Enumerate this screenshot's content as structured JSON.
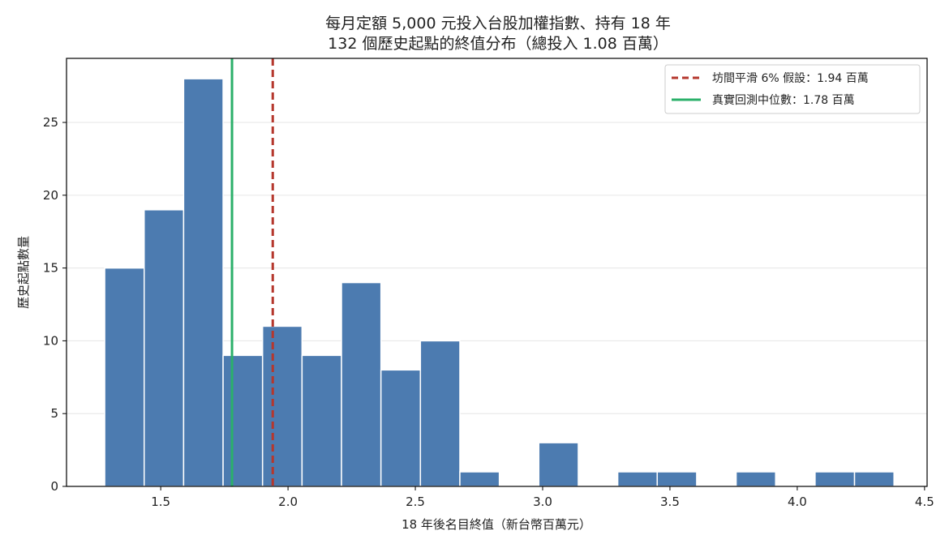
{
  "chart_data": {
    "type": "bar",
    "title": "每月定額 5,000 元投入台股加權指數、持有 18 年",
    "subtitle": "132 個歷史起點的終值分布（總投入 1.08 百萬）",
    "xlabel": "18 年後名目終值（新台幣百萬元）",
    "ylabel": "歷史起點數量",
    "xlim": [
      1.13,
      4.51
    ],
    "ylim": [
      0,
      29.4
    ],
    "xticks": [
      "1.5",
      "2.0",
      "2.5",
      "3.0",
      "3.5",
      "4.0",
      "4.5"
    ],
    "xtick_values": [
      1.5,
      2.0,
      2.5,
      3.0,
      3.5,
      4.0,
      4.5
    ],
    "yticks": [
      "0",
      "5",
      "10",
      "15",
      "20",
      "25"
    ],
    "ytick_values": [
      0,
      5,
      10,
      15,
      20,
      25
    ],
    "grid": "horizontal",
    "bins": [
      {
        "x0": 1.28,
        "x1": 1.435,
        "value": 15
      },
      {
        "x0": 1.435,
        "x1": 1.59,
        "value": 19
      },
      {
        "x0": 1.59,
        "x1": 1.745,
        "value": 28
      },
      {
        "x0": 1.745,
        "x1": 1.9,
        "value": 9
      },
      {
        "x0": 1.9,
        "x1": 2.055,
        "value": 11
      },
      {
        "x0": 2.055,
        "x1": 2.21,
        "value": 9
      },
      {
        "x0": 2.21,
        "x1": 2.365,
        "value": 14
      },
      {
        "x0": 2.365,
        "x1": 2.52,
        "value": 8
      },
      {
        "x0": 2.52,
        "x1": 2.675,
        "value": 10
      },
      {
        "x0": 2.675,
        "x1": 2.83,
        "value": 1
      },
      {
        "x0": 2.83,
        "x1": 2.985,
        "value": 0
      },
      {
        "x0": 2.985,
        "x1": 3.14,
        "value": 3
      },
      {
        "x0": 3.14,
        "x1": 3.295,
        "value": 0
      },
      {
        "x0": 3.295,
        "x1": 3.45,
        "value": 1
      },
      {
        "x0": 3.45,
        "x1": 3.605,
        "value": 1
      },
      {
        "x0": 3.605,
        "x1": 3.76,
        "value": 0
      },
      {
        "x0": 3.76,
        "x1": 3.915,
        "value": 1
      },
      {
        "x0": 3.915,
        "x1": 4.07,
        "value": 0
      },
      {
        "x0": 4.07,
        "x1": 4.225,
        "value": 1
      },
      {
        "x0": 4.225,
        "x1": 4.38,
        "value": 1
      }
    ],
    "bar_color": "#4c7bb0",
    "reference_lines": [
      {
        "name": "坊間平滑 6% 假設：1.94 百萬",
        "x": 1.94,
        "color": "#b5372d",
        "style": "dashed"
      },
      {
        "name": "真實回測中位數：1.78 百萬",
        "x": 1.78,
        "color": "#2bb06a",
        "style": "solid"
      }
    ],
    "legend_position": "top-right"
  }
}
